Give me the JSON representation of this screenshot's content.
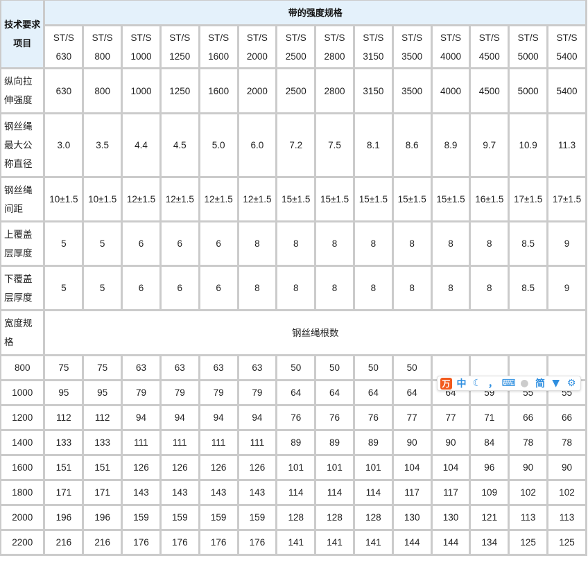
{
  "header": {
    "item_label": "技术要求项目",
    "group_label": "带的强度规格",
    "specs": [
      "ST/S 630",
      "ST/S 800",
      "ST/S 1000",
      "ST/S 1250",
      "ST/S 1600",
      "ST/S 2000",
      "ST/S 2500",
      "ST/S 2800",
      "ST/S 3150",
      "ST/S 3500",
      "ST/S 4000",
      "ST/S 4500",
      "ST/S 5000",
      "ST/S 5400"
    ]
  },
  "spec_rows": [
    {
      "label": "纵向拉伸强度",
      "values": [
        "630",
        "800",
        "1000",
        "1250",
        "1600",
        "2000",
        "2500",
        "2800",
        "3150",
        "3500",
        "4000",
        "4500",
        "5000",
        "5400"
      ]
    },
    {
      "label": "钢丝绳最大公称直径",
      "values": [
        "3.0",
        "3.5",
        "4.4",
        "4.5",
        "5.0",
        "6.0",
        "7.2",
        "7.5",
        "8.1",
        "8.6",
        "8.9",
        "9.7",
        "10.9",
        "11.3"
      ]
    },
    {
      "label": "钢丝绳间距",
      "values": [
        "10±1.5",
        "10±1.5",
        "12±1.5",
        "12±1.5",
        "12±1.5",
        "12±1.5",
        "15±1.5",
        "15±1.5",
        "15±1.5",
        "15±1.5",
        "15±1.5",
        "16±1.5",
        "17±1.5",
        "17±1.5"
      ]
    },
    {
      "label": "上覆盖层厚度",
      "values": [
        "5",
        "5",
        "6",
        "6",
        "6",
        "8",
        "8",
        "8",
        "8",
        "8",
        "8",
        "8",
        "8.5",
        "9"
      ]
    },
    {
      "label": "下覆盖层厚度",
      "values": [
        "5",
        "5",
        "6",
        "6",
        "6",
        "8",
        "8",
        "8",
        "8",
        "8",
        "8",
        "8",
        "8.5",
        "9"
      ]
    }
  ],
  "width_section": {
    "label": "宽度规格",
    "group_label": "钢丝绳根数"
  },
  "width_rows": [
    {
      "label": "800",
      "values": [
        "75",
        "75",
        "63",
        "63",
        "63",
        "63",
        "50",
        "50",
        "50",
        "50",
        "",
        "",
        "",
        ""
      ]
    },
    {
      "label": "1000",
      "values": [
        "95",
        "95",
        "79",
        "79",
        "79",
        "79",
        "64",
        "64",
        "64",
        "64",
        "64",
        "59",
        "55",
        "55"
      ]
    },
    {
      "label": "1200",
      "values": [
        "112",
        "112",
        "94",
        "94",
        "94",
        "94",
        "76",
        "76",
        "76",
        "77",
        "77",
        "71",
        "66",
        "66"
      ]
    },
    {
      "label": "1400",
      "values": [
        "133",
        "133",
        "111",
        "111",
        "111",
        "111",
        "89",
        "89",
        "89",
        "90",
        "90",
        "84",
        "78",
        "78"
      ]
    },
    {
      "label": "1600",
      "values": [
        "151",
        "151",
        "126",
        "126",
        "126",
        "126",
        "101",
        "101",
        "101",
        "104",
        "104",
        "96",
        "90",
        "90"
      ]
    },
    {
      "label": "1800",
      "values": [
        "171",
        "171",
        "143",
        "143",
        "143",
        "143",
        "114",
        "114",
        "114",
        "117",
        "117",
        "109",
        "102",
        "102"
      ]
    },
    {
      "label": "2000",
      "values": [
        "196",
        "196",
        "159",
        "159",
        "159",
        "159",
        "128",
        "128",
        "128",
        "130",
        "130",
        "121",
        "113",
        "113"
      ]
    },
    {
      "label": "2200",
      "values": [
        "216",
        "216",
        "176",
        "176",
        "176",
        "176",
        "141",
        "141",
        "141",
        "144",
        "144",
        "134",
        "125",
        "125"
      ]
    }
  ],
  "ime_toolbar": {
    "logo": "万",
    "mode": "中",
    "punct": "，",
    "simplified": "简"
  }
}
